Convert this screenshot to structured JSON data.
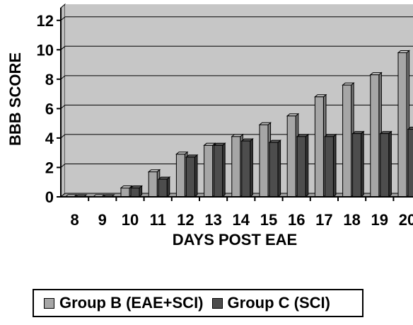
{
  "chart_data": {
    "type": "bar",
    "title": "",
    "xlabel": "DAYS POST EAE",
    "ylabel": "BBB SCORE",
    "ylim": [
      0,
      13
    ],
    "yticks": [
      "0",
      "2",
      "4",
      "6",
      "8",
      "10",
      "12"
    ],
    "categories": [
      "8",
      "9",
      "10",
      "11",
      "12",
      "13",
      "14",
      "15",
      "16",
      "17",
      "18",
      "19",
      "20"
    ],
    "grid": true,
    "legend_position": "bottom",
    "series": [
      {
        "name": "Group B (EAE+SCI)",
        "color": "#a6a6a6",
        "values": [
          0,
          0,
          0.6,
          1.7,
          2.9,
          3.5,
          4.1,
          4.9,
          5.5,
          6.8,
          7.6,
          8.3,
          9.8
        ]
      },
      {
        "name": "Group C (SCI)",
        "color": "#4d4d4d",
        "values": [
          0,
          0,
          0.6,
          1.2,
          2.7,
          3.5,
          3.8,
          3.7,
          4.1,
          4.1,
          4.3,
          4.3,
          4.6
        ]
      }
    ]
  }
}
